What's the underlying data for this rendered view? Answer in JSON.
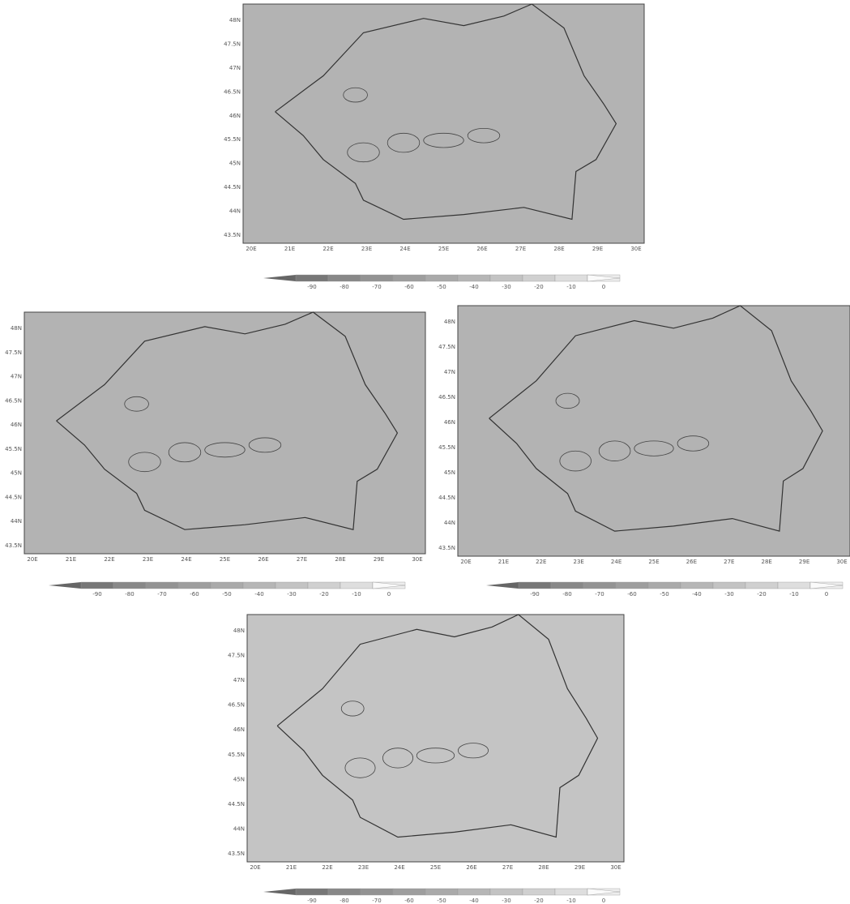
{
  "panels": [
    {
      "lat_labels": [
        "48N",
        "47.5N",
        "47N",
        "46.5N",
        "46N",
        "45.5N",
        "45N",
        "44.5N",
        "44N",
        "43.5N"
      ],
      "lon_labels": [
        "20E",
        "21E",
        "22E",
        "23E",
        "24E",
        "25E",
        "26E",
        "27E",
        "28E",
        "29E",
        "30E"
      ],
      "colorbar_labels": [
        -90,
        -80,
        -70,
        -60,
        -50,
        -40,
        -30,
        -20,
        -10,
        0
      ]
    },
    {
      "lat_labels": [
        "48N",
        "47.5N",
        "47N",
        "46.5N",
        "46N",
        "45.5N",
        "45N",
        "44.5N",
        "44N",
        "43.5N"
      ],
      "lon_labels": [
        "20E",
        "21E",
        "22E",
        "23E",
        "24E",
        "25E",
        "26E",
        "27E",
        "28E",
        "29E",
        "30E"
      ],
      "colorbar_labels": [
        -90,
        -80,
        -70,
        -60,
        -50,
        -40,
        -30,
        -20,
        -10,
        0
      ]
    },
    {
      "lat_labels": [
        "48N",
        "47.5N",
        "47N",
        "46.5N",
        "46N",
        "45.5N",
        "45N",
        "44.5N",
        "44N",
        "43.5N"
      ],
      "lon_labels": [
        "20E",
        "21E",
        "22E",
        "23E",
        "24E",
        "25E",
        "26E",
        "27E",
        "28E",
        "29E",
        "30E"
      ],
      "colorbar_labels": [
        -90,
        -80,
        -70,
        -60,
        -50,
        -40,
        -30,
        -20,
        -10,
        0
      ]
    },
    {
      "lat_labels": [
        "48N",
        "47.5N",
        "47N",
        "46.5N",
        "46N",
        "45.5N",
        "45N",
        "44.5N",
        "44N",
        "43.5N"
      ],
      "lon_labels": [
        "20E",
        "21E",
        "22E",
        "23E",
        "24E",
        "25E",
        "26E",
        "27E",
        "28E",
        "29E",
        "30E"
      ],
      "colorbar_labels": [
        -90,
        -80,
        -70,
        -60,
        -50,
        -40,
        -30,
        -20,
        -10,
        0
      ]
    }
  ]
}
